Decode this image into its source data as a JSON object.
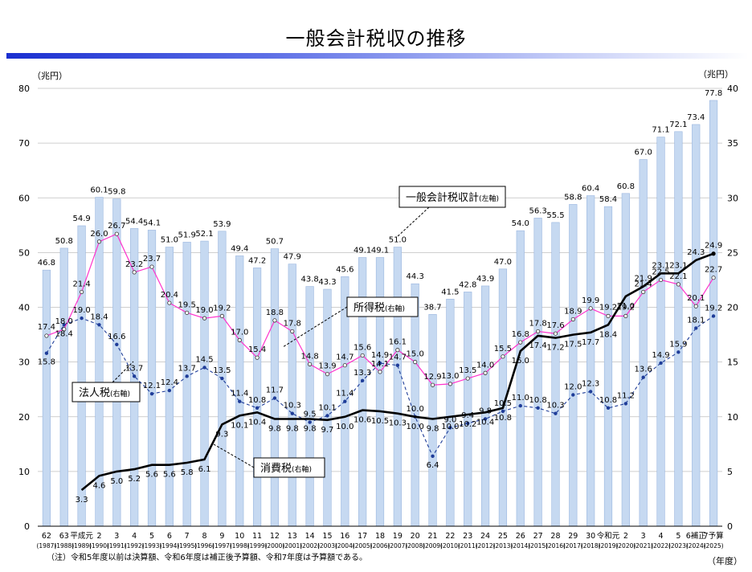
{
  "title": "一般会計税収の推移",
  "note": "（注）令和5年度以前は決算額、令和6年度は補正後予算額、令和7年度は予算額である。",
  "x_unit": "（年度）",
  "colors": {
    "bar": "#c6d9f1",
    "bar_edge": "#9ab6df",
    "income": "#ff33cc",
    "consumption": "#000000",
    "corporate": "#1f3d99",
    "title_bar": "#1a2fd0"
  },
  "chart_data": {
    "type": "bar",
    "left_axis": {
      "unit": "（兆円）",
      "range": [
        0,
        80
      ],
      "ticks": [
        0,
        10,
        20,
        30,
        40,
        50,
        60,
        70,
        80
      ]
    },
    "right_axis": {
      "unit": "（兆円）",
      "range": [
        0,
        40
      ],
      "ticks": [
        0,
        5,
        10,
        15,
        20,
        25,
        30,
        35,
        40
      ]
    },
    "grid": true,
    "categories": [
      [
        "62",
        "(1987)"
      ],
      [
        "63",
        "(1988)"
      ],
      [
        "平成元",
        "(1989)"
      ],
      [
        "2",
        "(1990)"
      ],
      [
        "3",
        "(1991)"
      ],
      [
        "4",
        "(1992)"
      ],
      [
        "5",
        "(1993)"
      ],
      [
        "6",
        "(1994)"
      ],
      [
        "7",
        "(1995)"
      ],
      [
        "8",
        "(1996)"
      ],
      [
        "9",
        "(1997)"
      ],
      [
        "10",
        "(1998)"
      ],
      [
        "11",
        "(1999)"
      ],
      [
        "12",
        "(2000)"
      ],
      [
        "13",
        "(2001)"
      ],
      [
        "14",
        "(2002)"
      ],
      [
        "15",
        "(2003)"
      ],
      [
        "16",
        "(2004)"
      ],
      [
        "17",
        "(2005)"
      ],
      [
        "18",
        "(2006)"
      ],
      [
        "19",
        "(2007)"
      ],
      [
        "20",
        "(2008)"
      ],
      [
        "21",
        "(2009)"
      ],
      [
        "22",
        "(2010)"
      ],
      [
        "23",
        "(2011)"
      ],
      [
        "24",
        "(2012)"
      ],
      [
        "25",
        "(2013)"
      ],
      [
        "26",
        "(2014)"
      ],
      [
        "27",
        "(2015)"
      ],
      [
        "28",
        "(2016)"
      ],
      [
        "29",
        "(2017)"
      ],
      [
        "30",
        "(2018)"
      ],
      [
        "令和元",
        "(2019)"
      ],
      [
        "2",
        "(2020)"
      ],
      [
        "3",
        "(2021)"
      ],
      [
        "4",
        "(2022)"
      ],
      [
        "5",
        "(2023)"
      ],
      [
        "6補正",
        "(2024)"
      ],
      [
        "7予算",
        "(2025)"
      ]
    ],
    "series": [
      {
        "name": "一般会計税収計",
        "axis": "left",
        "type": "bar",
        "values": [
          46.8,
          50.8,
          54.9,
          60.1,
          59.8,
          54.4,
          54.1,
          51.0,
          51.9,
          52.1,
          53.9,
          49.4,
          47.2,
          50.7,
          47.9,
          43.8,
          43.3,
          45.6,
          49.1,
          49.1,
          51.0,
          44.3,
          38.7,
          41.5,
          42.8,
          43.9,
          47.0,
          54.0,
          56.3,
          55.5,
          58.8,
          60.4,
          58.4,
          60.8,
          67.0,
          71.1,
          72.1,
          73.4,
          77.8
        ],
        "labels": [
          "46.8",
          "50.8",
          "54.9",
          "60.1",
          "59.8",
          "54.4",
          "54.1",
          "51.0",
          "51.9",
          "52.1",
          "53.9",
          "49.4",
          "47.2",
          "50.7",
          "47.9",
          "43.8",
          "43.3",
          "45.6",
          "49.1",
          "49.1",
          "51.0",
          "44.3",
          "38.7",
          "41.5",
          "42.8",
          "43.9",
          "47.0",
          "54.0",
          "56.3",
          "55.5",
          "58.8",
          "60.4",
          "58.4",
          "60.8",
          "67.0",
          "71.1",
          "72.1",
          "73.4",
          "77.8"
        ]
      },
      {
        "name": "所得税",
        "axis": "right",
        "type": "line",
        "values": [
          17.4,
          18.0,
          21.4,
          26.0,
          26.7,
          23.2,
          23.7,
          20.4,
          19.5,
          19.0,
          19.2,
          17.0,
          15.4,
          18.8,
          17.8,
          14.8,
          13.9,
          14.7,
          15.6,
          14.1,
          16.1,
          15.0,
          12.9,
          13.0,
          13.5,
          14.0,
          15.5,
          16.8,
          17.8,
          17.6,
          18.9,
          19.9,
          19.2,
          19.2,
          21.4,
          22.5,
          22.1,
          20.1,
          22.7
        ],
        "labels": [
          "17.4",
          "18.0",
          "21.4",
          "26.0",
          "26.7",
          "23.2",
          "23.7",
          "20.4",
          "19.5",
          "19.0",
          "19.2",
          "17.0",
          "15.4",
          "18.8",
          "17.8",
          "14.8",
          "13.9",
          "14.7",
          "15.6",
          "14.1",
          "16.1",
          "15.0",
          "12.9",
          "13.0",
          "13.5",
          "14.0",
          "15.5",
          "16.8",
          "17.8",
          "17.6",
          "18.9",
          "19.9",
          "19.2",
          "19.2",
          "21.4",
          "22.5",
          "22.1",
          "20.1",
          "22.7"
        ]
      },
      {
        "name": "法人税",
        "axis": "right",
        "type": "line",
        "values": [
          15.8,
          18.4,
          19.0,
          18.4,
          16.6,
          13.7,
          12.1,
          12.4,
          13.7,
          14.5,
          13.5,
          11.4,
          10.8,
          11.7,
          10.3,
          9.5,
          10.1,
          11.4,
          13.3,
          14.9,
          14.7,
          10.0,
          6.4,
          9.0,
          9.4,
          9.8,
          10.5,
          11.0,
          10.8,
          10.3,
          12.0,
          12.3,
          10.8,
          11.2,
          13.6,
          14.9,
          15.9,
          18.1,
          19.2
        ],
        "labels": [
          "15.8",
          "18.4",
          "19.0",
          "18.4",
          "16.6",
          "13.7",
          "12.1",
          "12.4",
          "13.7",
          "14.5",
          "13.5",
          "11.4",
          "10.8",
          "11.7",
          "10.3",
          "9.5",
          "10.1",
          "11.4",
          "13.3",
          "14.9",
          "14.7",
          "10.0",
          "6.4",
          "9.0",
          "9.4",
          "9.8",
          "10.5",
          "11.0",
          "10.8",
          "10.3",
          "12.0",
          "12.3",
          "10.8",
          "11.2",
          "13.6",
          "14.9",
          "15.9",
          "18.1",
          "19.2"
        ]
      },
      {
        "name": "消費税",
        "axis": "right",
        "type": "line",
        "start_index": 2,
        "values": [
          null,
          null,
          3.3,
          4.6,
          5.0,
          5.2,
          5.6,
          5.6,
          5.8,
          6.1,
          9.3,
          10.1,
          10.4,
          9.8,
          9.8,
          9.8,
          9.7,
          10.0,
          10.6,
          10.5,
          10.3,
          10.0,
          9.8,
          10.0,
          10.2,
          10.4,
          10.8,
          16.0,
          17.4,
          17.2,
          17.5,
          17.7,
          18.4,
          21.0,
          21.9,
          23.1,
          23.1,
          24.3,
          24.9
        ],
        "labels": [
          null,
          null,
          "3.3",
          "4.6",
          "5.0",
          "5.2",
          "5.6",
          "5.6",
          "5.8",
          "6.1",
          "9.3",
          "10.1",
          "10.4",
          "9.8",
          "9.8",
          "9.8",
          "9.7",
          "10.0",
          "10.6",
          "10.5",
          "10.3",
          "10.0",
          "9.8",
          "10.0",
          "10.2",
          "10.4",
          "10.8",
          "16.0",
          "17.4",
          "17.2",
          "17.5",
          "17.7",
          "18.4",
          "21.0",
          "21.9",
          "23.1",
          "23.1",
          "24.3",
          "24.9"
        ]
      }
    ],
    "annotations": [
      {
        "text": "一般会計税収計",
        "axis_note": "(左軸)"
      },
      {
        "text": "所得税",
        "axis_note": "(右軸)"
      },
      {
        "text": "法人税",
        "axis_note": "(右軸)"
      },
      {
        "text": "消費税",
        "axis_note": "(右軸)"
      }
    ]
  }
}
